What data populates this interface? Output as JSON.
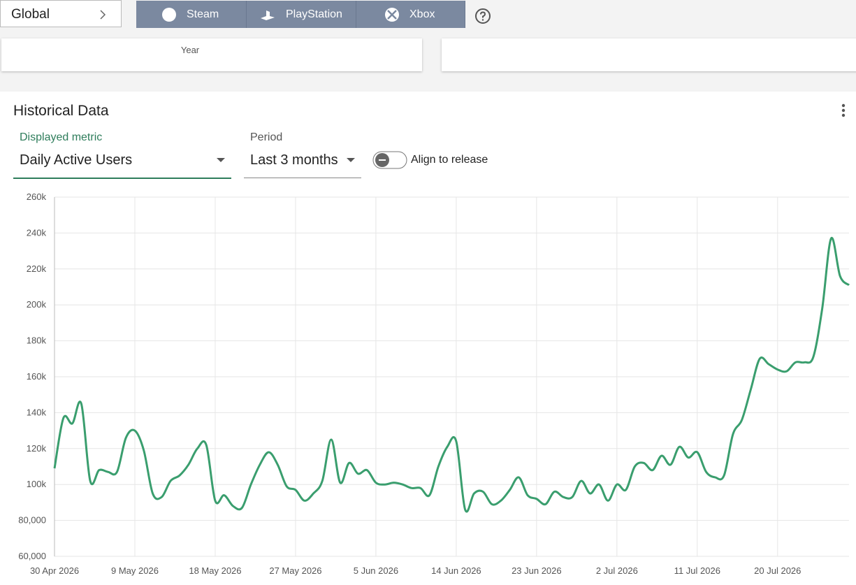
{
  "nav": {
    "scope": "Global",
    "platforms": [
      "Steam",
      "PlayStation",
      "Xbox"
    ]
  },
  "cards": [
    {
      "label": "Year"
    }
  ],
  "panel": {
    "title": "Historical Data",
    "metric_label": "Displayed metric",
    "metric_value": "Daily Active Users",
    "period_label": "Period",
    "period_value": "Last 3 months",
    "toggle_label": "Align to release"
  },
  "chart_data": {
    "type": "line",
    "x": [
      "30 Apr 2026",
      "1 May 2026",
      "2 May 2026",
      "3 May 2026",
      "4 May 2026",
      "5 May 2026",
      "6 May 2026",
      "7 May 2026",
      "8 May 2026",
      "9 May 2026",
      "10 May 2026",
      "11 May 2026",
      "12 May 2026",
      "13 May 2026",
      "14 May 2026",
      "15 May 2026",
      "16 May 2026",
      "17 May 2026",
      "18 May 2026",
      "19 May 2026",
      "20 May 2026",
      "21 May 2026",
      "22 May 2026",
      "23 May 2026",
      "24 May 2026",
      "25 May 2026",
      "26 May 2026",
      "27 May 2026",
      "28 May 2026",
      "29 May 2026",
      "30 May 2026",
      "31 May 2026",
      "1 Jun 2026",
      "2 Jun 2026",
      "3 Jun 2026",
      "4 Jun 2026",
      "5 Jun 2026",
      "6 Jun 2026",
      "7 Jun 2026",
      "8 Jun 2026",
      "9 Jun 2026",
      "10 Jun 2026",
      "11 Jun 2026",
      "12 Jun 2026",
      "13 Jun 2026",
      "14 Jun 2026",
      "15 Jun 2026",
      "16 Jun 2026",
      "17 Jun 2026",
      "18 Jun 2026",
      "19 Jun 2026",
      "20 Jun 2026",
      "21 Jun 2026",
      "22 Jun 2026",
      "23 Jun 2026",
      "24 Jun 2026",
      "25 Jun 2026",
      "26 Jun 2026",
      "27 Jun 2026",
      "28 Jun 2026",
      "29 Jun 2026",
      "30 Jun 2026",
      "1 Jul 2026",
      "2 Jul 2026",
      "3 Jul 2026",
      "4 Jul 2026",
      "5 Jul 2026",
      "6 Jul 2026",
      "7 Jul 2026",
      "8 Jul 2026",
      "9 Jul 2026",
      "10 Jul 2026",
      "11 Jul 2026",
      "12 Jul 2026",
      "13 Jul 2026",
      "14 Jul 2026",
      "15 Jul 2026",
      "16 Jul 2026",
      "17 Jul 2026",
      "18 Jul 2026",
      "19 Jul 2026",
      "20 Jul 2026",
      "21 Jul 2026",
      "22 Jul 2026",
      "23 Jul 2026",
      "24 Jul 2026",
      "25 Jul 2026",
      "26 Jul 2026",
      "27 Jul 2026",
      "28 Jul 2026"
    ],
    "series": [
      {
        "color": "#3a9e6e",
        "values": [
          109000,
          137000,
          134000,
          145000,
          102000,
          108000,
          107000,
          107000,
          126000,
          130000,
          119000,
          95000,
          93000,
          102000,
          105000,
          111000,
          120000,
          122000,
          91000,
          94000,
          88000,
          87000,
          100000,
          111000,
          118000,
          111000,
          99000,
          97000,
          91000,
          95000,
          102000,
          125000,
          101000,
          112000,
          106000,
          108000,
          101000,
          100000,
          101000,
          100000,
          98000,
          98000,
          94000,
          110000,
          121000,
          124000,
          86000,
          95000,
          96000,
          89000,
          91000,
          97000,
          104000,
          94000,
          92000,
          89000,
          96000,
          93000,
          93000,
          102000,
          95000,
          100000,
          91000,
          100000,
          97000,
          110000,
          112000,
          108000,
          116000,
          111000,
          121000,
          115000,
          118000,
          107000,
          104000,
          105000,
          128000,
          136000,
          153000,
          170000,
          167000,
          164000,
          163000,
          168000,
          168000,
          171000,
          198000,
          237000,
          216000,
          211000
        ]
      }
    ],
    "xlim": [
      "30 Apr 2026",
      "28 Jul 2026"
    ],
    "xticks": [
      "30 Apr 2026",
      "9 May 2026",
      "18 May 2026",
      "27 May 2026",
      "5 Jun 2026",
      "14 Jun 2026",
      "23 Jun 2026",
      "2 Jul 2026",
      "11 Jul 2026",
      "20 Jul 2026"
    ],
    "ylim": [
      60000,
      260000
    ],
    "yticks": [
      {
        "value": 60000,
        "label": "60,000"
      },
      {
        "value": 80000,
        "label": "80,000"
      },
      {
        "value": 100000,
        "label": "100k"
      },
      {
        "value": 120000,
        "label": "120k"
      },
      {
        "value": 140000,
        "label": "140k"
      },
      {
        "value": 160000,
        "label": "160k"
      },
      {
        "value": 180000,
        "label": "180k"
      },
      {
        "value": 200000,
        "label": "200k"
      },
      {
        "value": 220000,
        "label": "220k"
      },
      {
        "value": 240000,
        "label": "240k"
      },
      {
        "value": 260000,
        "label": "260k"
      }
    ],
    "grid": true
  }
}
